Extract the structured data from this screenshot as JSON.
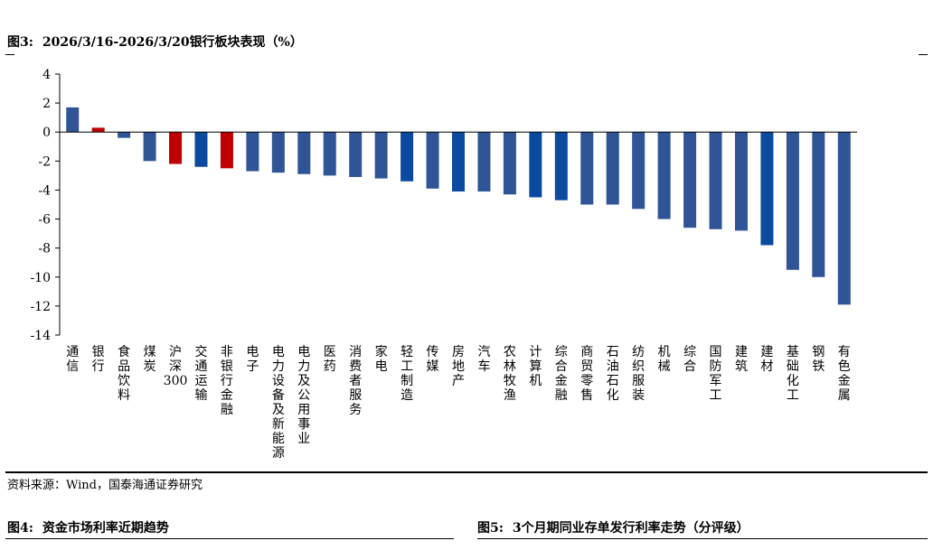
{
  "figure": {
    "number": "图3:",
    "title": "2026/3/16-2026/3/20银行板块表现（%）"
  },
  "source": "资料来源：Wind，国泰海通证券研究",
  "next_figures": [
    {
      "number": "图4:",
      "title": "资金市场利率近期趋势"
    },
    {
      "number": "图5:",
      "title": "3个月期同业存单发行利率走势（分评级）"
    }
  ],
  "chart_data": {
    "type": "bar",
    "title": "2026/3/16-2026/3/20银行板块表现（%）",
    "xlabel": "",
    "ylabel": "",
    "ylim": [
      -14,
      4
    ],
    "yticks": [
      4,
      2,
      0,
      -2,
      -4,
      -6,
      -8,
      -10,
      -12,
      -14
    ],
    "grid": false,
    "colors": {
      "default": "#2f5597",
      "dark": "#0b4a9e",
      "highlight": "#c00000"
    },
    "categories": [
      "通信",
      "银行",
      "食品饮料",
      "煤炭",
      "沪深300",
      "交通运输",
      "非银行金融",
      "电子",
      "电力设备及新能源",
      "电力及公用事业",
      "医药",
      "消费者服务",
      "家电",
      "轻工制造",
      "传媒",
      "房地产",
      "汽车",
      "农林牧渔",
      "计算机",
      "综合金融",
      "商贸零售",
      "石油石化",
      "纺织服装",
      "机械",
      "综合",
      "国防军工",
      "建筑",
      "建材",
      "基础化工",
      "钢铁",
      "有色金属"
    ],
    "values": [
      1.7,
      0.3,
      -0.4,
      -2.0,
      -2.2,
      -2.4,
      -2.5,
      -2.7,
      -2.8,
      -2.9,
      -3.0,
      -3.1,
      -3.2,
      -3.4,
      -3.9,
      -4.1,
      -4.1,
      -4.3,
      -4.5,
      -4.7,
      -5.0,
      -5.0,
      -5.3,
      -6.0,
      -6.6,
      -6.7,
      -6.8,
      -7.8,
      -9.5,
      -10.0,
      -11.9
    ],
    "bar_colors": [
      "default",
      "highlight",
      "default",
      "default",
      "highlight",
      "dark",
      "highlight",
      "default",
      "default",
      "default",
      "default",
      "default",
      "default",
      "dark",
      "default",
      "dark",
      "default",
      "default",
      "dark",
      "dark",
      "default",
      "default",
      "default",
      "default",
      "default",
      "default",
      "default",
      "dark",
      "default",
      "default",
      "default"
    ]
  }
}
